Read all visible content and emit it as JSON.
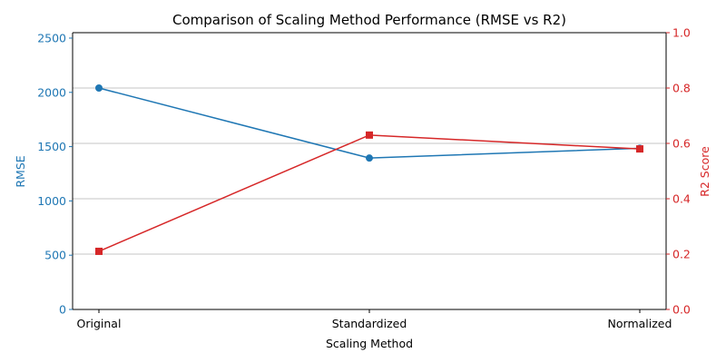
{
  "chart_data": {
    "type": "line",
    "title": "Comparison of Scaling Method Performance (RMSE vs R2)",
    "xlabel": "Scaling Method",
    "categories": [
      "Original",
      "Standardized",
      "Normalized"
    ],
    "left_axis": {
      "label": "RMSE",
      "color": "#1f77b4",
      "ylim": [
        0,
        2550
      ],
      "ticks": [
        0,
        500,
        1000,
        1500,
        2000,
        2500
      ],
      "tick_labels": [
        "0",
        "500",
        "1000",
        "1500",
        "2000",
        "2500"
      ]
    },
    "right_axis": {
      "label": "R2 Score",
      "color": "#d62728",
      "ylim": [
        0,
        1.0
      ],
      "ticks": [
        0,
        0.2,
        0.4,
        0.6,
        0.8,
        1.0
      ],
      "tick_labels": [
        "0.0",
        "0.2",
        "0.4",
        "0.6",
        "0.8",
        "1.0"
      ]
    },
    "series": [
      {
        "axis": "left",
        "color": "#1f77b4",
        "marker": "circle",
        "values": [
          2040,
          1395,
          1485
        ]
      },
      {
        "axis": "right",
        "color": "#d62728",
        "marker": "square",
        "values": [
          0.21,
          0.63,
          0.58
        ]
      }
    ],
    "grid": "horizontal, right axis"
  }
}
